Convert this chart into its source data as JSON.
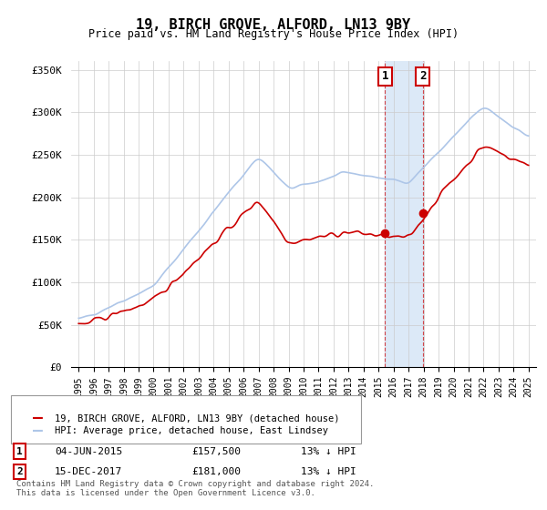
{
  "title": "19, BIRCH GROVE, ALFORD, LN13 9BY",
  "subtitle": "Price paid vs. HM Land Registry's House Price Index (HPI)",
  "legend_line1": "19, BIRCH GROVE, ALFORD, LN13 9BY (detached house)",
  "legend_line2": "HPI: Average price, detached house, East Lindsey",
  "annotation1_label": "1",
  "annotation1_date": "04-JUN-2015",
  "annotation1_price": "£157,500",
  "annotation1_hpi": "13% ↓ HPI",
  "annotation1_year": 2015.42,
  "annotation1_value": 157500,
  "annotation2_label": "2",
  "annotation2_date": "15-DEC-2017",
  "annotation2_price": "£181,000",
  "annotation2_hpi": "13% ↓ HPI",
  "annotation2_year": 2017.96,
  "annotation2_value": 181000,
  "footer": "Contains HM Land Registry data © Crown copyright and database right 2024.\nThis data is licensed under the Open Government Licence v3.0.",
  "hpi_color": "#aec6e8",
  "price_color": "#cc0000",
  "shade_color": "#dce9f7",
  "ylim": [
    0,
    360000
  ],
  "yticks": [
    0,
    50000,
    100000,
    150000,
    200000,
    250000,
    300000,
    350000
  ],
  "ytick_labels": [
    "£0",
    "£50K",
    "£100K",
    "£150K",
    "£200K",
    "£250K",
    "£300K",
    "£350K"
  ]
}
